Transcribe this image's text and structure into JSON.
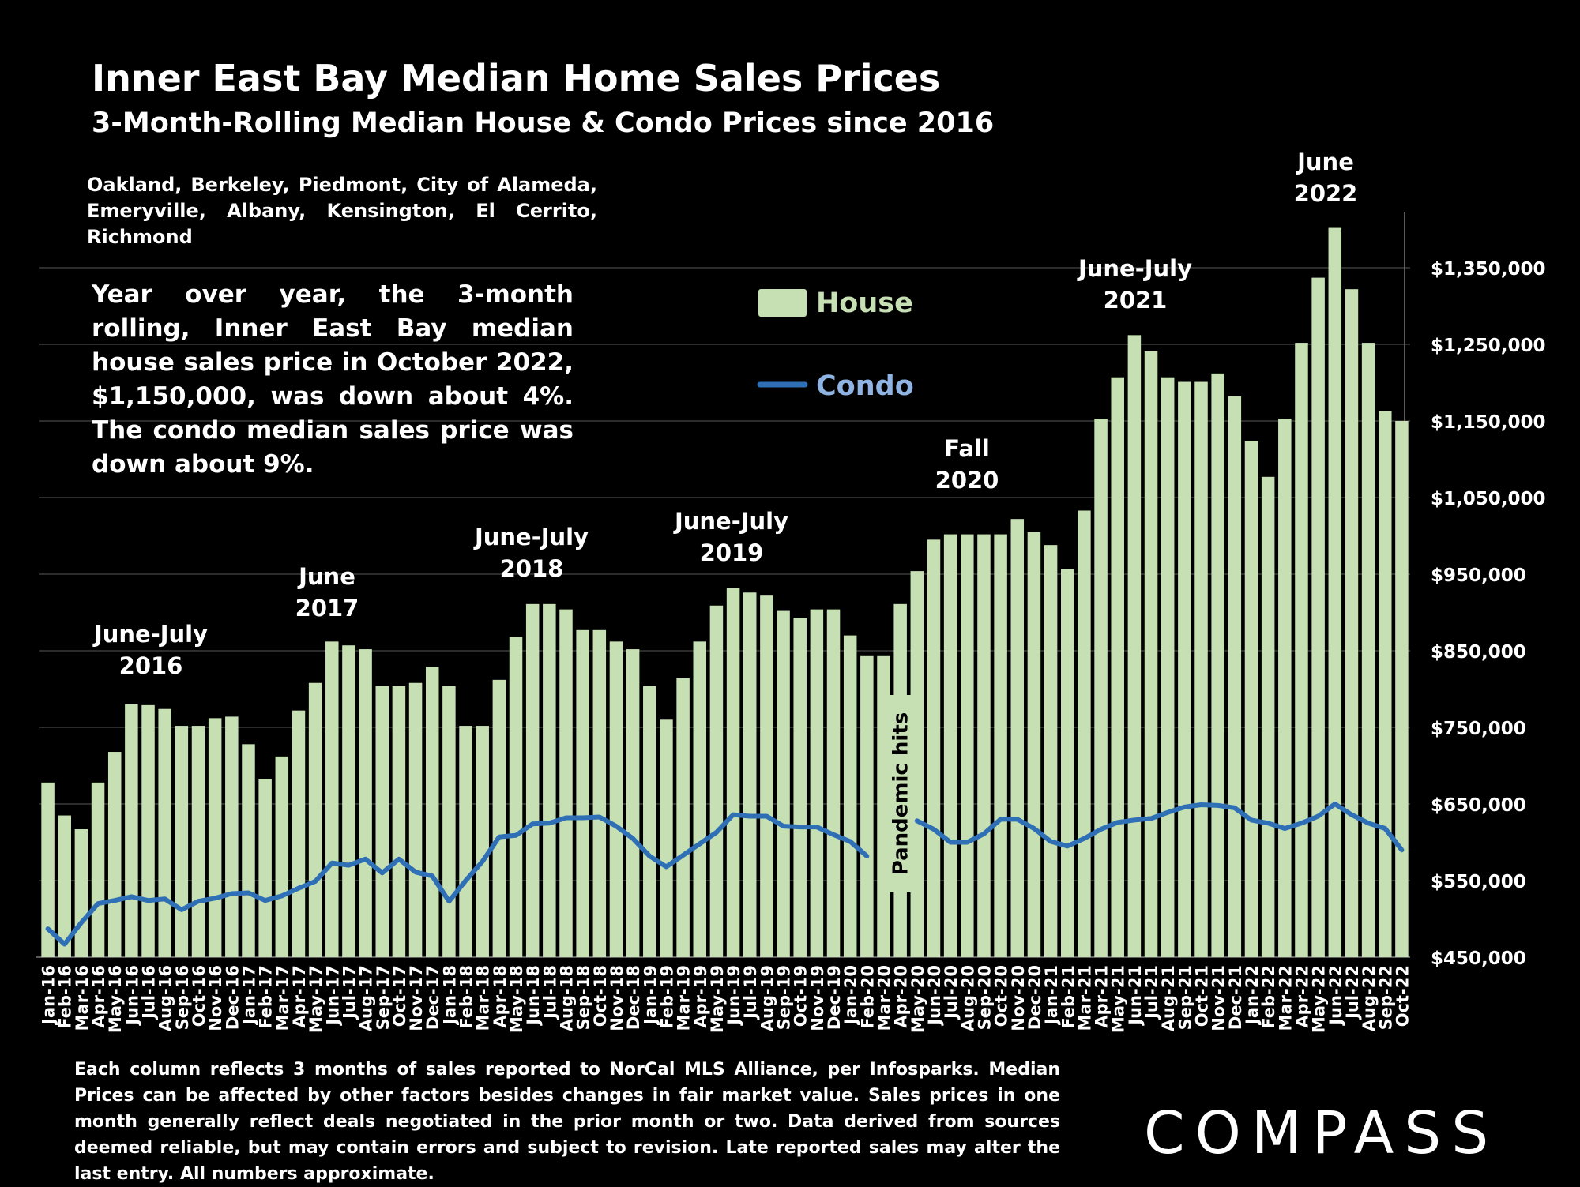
{
  "header": {
    "title": "Inner East Bay Median Home Sales Prices",
    "subtitle": "3-Month-Rolling Median House & Condo Prices since 2016",
    "cities": "Oakland, Berkeley, Piedmont, City of Alameda, Emeryville, Albany, Kensington, El Cerrito, Richmond",
    "summary": "Year over year, the 3-month rolling, Inner East Bay median house sales price in October 2022, $1,150,000, was down about 4%. The condo median sales price was down about 9%."
  },
  "footnote": "Each column reflects 3 months of sales reported to NorCal MLS Alliance, per Infosparks. Median Prices can be affected by other factors besides changes in fair market value. Sales prices in one month generally reflect deals negotiated in the prior month or two. Data derived from sources deemed reliable, but may contain errors and subject to revision. Late reported sales may alter the last entry. All numbers approximate.",
  "logo": "COMPASS",
  "colors": {
    "house": "#c6e0b4",
    "condo": "#2e6fb5",
    "background": "#000000",
    "text": "#ffffff",
    "condo_legend_text": "#8fb4e3",
    "house_legend_text": "#c6e0b4"
  },
  "chart_data": {
    "type": "bar",
    "ylim": [
      450000,
      1450000
    ],
    "yticks": [
      450000,
      550000,
      650000,
      750000,
      850000,
      950000,
      1050000,
      1150000,
      1250000,
      1350000
    ],
    "ytick_labels": [
      "$450,000",
      "$550,000",
      "$650,000",
      "$750,000",
      "$850,000",
      "$950,000",
      "$1,050,000",
      "$1,150,000",
      "$1,250,000",
      "$1,350,000"
    ],
    "grid": true,
    "y_axis_side": "right",
    "categories": [
      "Jan-16",
      "Feb-16",
      "Mar-16",
      "Apr-16",
      "May-16",
      "Jun-16",
      "Jul-16",
      "Aug-16",
      "Sep-16",
      "Oct-16",
      "Nov-16",
      "Dec-16",
      "Jan-17",
      "Feb-17",
      "Mar-17",
      "Apr-17",
      "May-17",
      "Jun-17",
      "Jul-17",
      "Aug-17",
      "Sep-17",
      "Oct-17",
      "Nov-17",
      "Dec-17",
      "Jan-18",
      "Feb-18",
      "Mar-18",
      "Apr-18",
      "May-18",
      "Jun-18",
      "Jul-18",
      "Aug-18",
      "Sep-18",
      "Oct-18",
      "Nov-18",
      "Dec-18",
      "Jan-19",
      "Feb-19",
      "Mar-19",
      "Apr-19",
      "May-19",
      "Jun-19",
      "Jul-19",
      "Aug-19",
      "Sep-19",
      "Oct-19",
      "Nov-19",
      "Dec-19",
      "Jan-20",
      "Feb-20",
      "Mar-20",
      "Apr-20",
      "May-20",
      "Jun-20",
      "Jul-20",
      "Aug-20",
      "Sep-20",
      "Oct-20",
      "Nov-20",
      "Dec-20",
      "Jan-21",
      "Feb-21",
      "Mar-21",
      "Apr-21",
      "May-21",
      "Jun-21",
      "Jul-21",
      "Aug-21",
      "Sep-21",
      "Oct-21",
      "Nov-21",
      "Dec-21",
      "Jan-22",
      "Feb-22",
      "Mar-22",
      "Apr-22",
      "May-22",
      "Jun-22",
      "Jul-22",
      "Aug-22",
      "Sep-22",
      "Oct-22"
    ],
    "series": [
      {
        "name": "House",
        "type": "bar",
        "values": [
          678000,
          635000,
          617000,
          678000,
          718000,
          780000,
          779000,
          774000,
          752000,
          752000,
          762000,
          764000,
          728000,
          683000,
          712000,
          772000,
          808000,
          862000,
          857000,
          852000,
          804000,
          804000,
          808000,
          829000,
          804000,
          752000,
          752000,
          812000,
          868000,
          911000,
          911000,
          904000,
          877000,
          877000,
          862000,
          852000,
          804000,
          760000,
          814000,
          862000,
          909000,
          932000,
          926000,
          922000,
          902000,
          893000,
          904000,
          904000,
          870000,
          843000,
          843000,
          911000,
          954000,
          995000,
          1002000,
          1002000,
          1002000,
          1002000,
          1022000,
          1005000,
          988000,
          957000,
          1033000,
          1153000,
          1207000,
          1262000,
          1241000,
          1207000,
          1201000,
          1201000,
          1212000,
          1182000,
          1124000,
          1077000,
          1153000,
          1252000,
          1337000,
          1402000,
          1322000,
          1252000,
          1163000,
          1150000
        ]
      },
      {
        "name": "Condo",
        "type": "line",
        "values": [
          487000,
          467000,
          495000,
          520000,
          524000,
          529000,
          524000,
          526000,
          512000,
          523000,
          527000,
          533000,
          534000,
          524000,
          530000,
          540000,
          549000,
          573000,
          570000,
          578000,
          560000,
          578000,
          561000,
          556000,
          523000,
          550000,
          575000,
          607000,
          609000,
          624000,
          625000,
          632000,
          632000,
          633000,
          621000,
          605000,
          582000,
          568000,
          583000,
          598000,
          613000,
          636000,
          634000,
          634000,
          621000,
          620000,
          620000,
          610000,
          601000,
          582000,
          610000,
          620000,
          628000,
          617000,
          600000,
          600000,
          611000,
          630000,
          630000,
          618000,
          601000,
          595000,
          605000,
          617000,
          626000,
          629000,
          631000,
          639000,
          646000,
          649000,
          648000,
          645000,
          629000,
          625000,
          618000,
          625000,
          634000,
          650000,
          636000,
          625000,
          618000,
          590000
        ]
      }
    ],
    "annotations": [
      {
        "text_line1": "June-July",
        "text_line2": "2016"
      },
      {
        "text_line1": "June",
        "text_line2": "2017"
      },
      {
        "text_line1": "June-July",
        "text_line2": "2018"
      },
      {
        "text_line1": "June-July",
        "text_line2": "2019"
      },
      {
        "text_line1": "Fall",
        "text_line2": "2020"
      },
      {
        "text_line1": "June-July",
        "text_line2": "2021"
      },
      {
        "text_line1": "June",
        "text_line2": "2022"
      }
    ],
    "pandemic_label": "Pandemic hits",
    "legend": {
      "placement": "top-center",
      "house_label": "House",
      "condo_label": "Condo"
    }
  }
}
